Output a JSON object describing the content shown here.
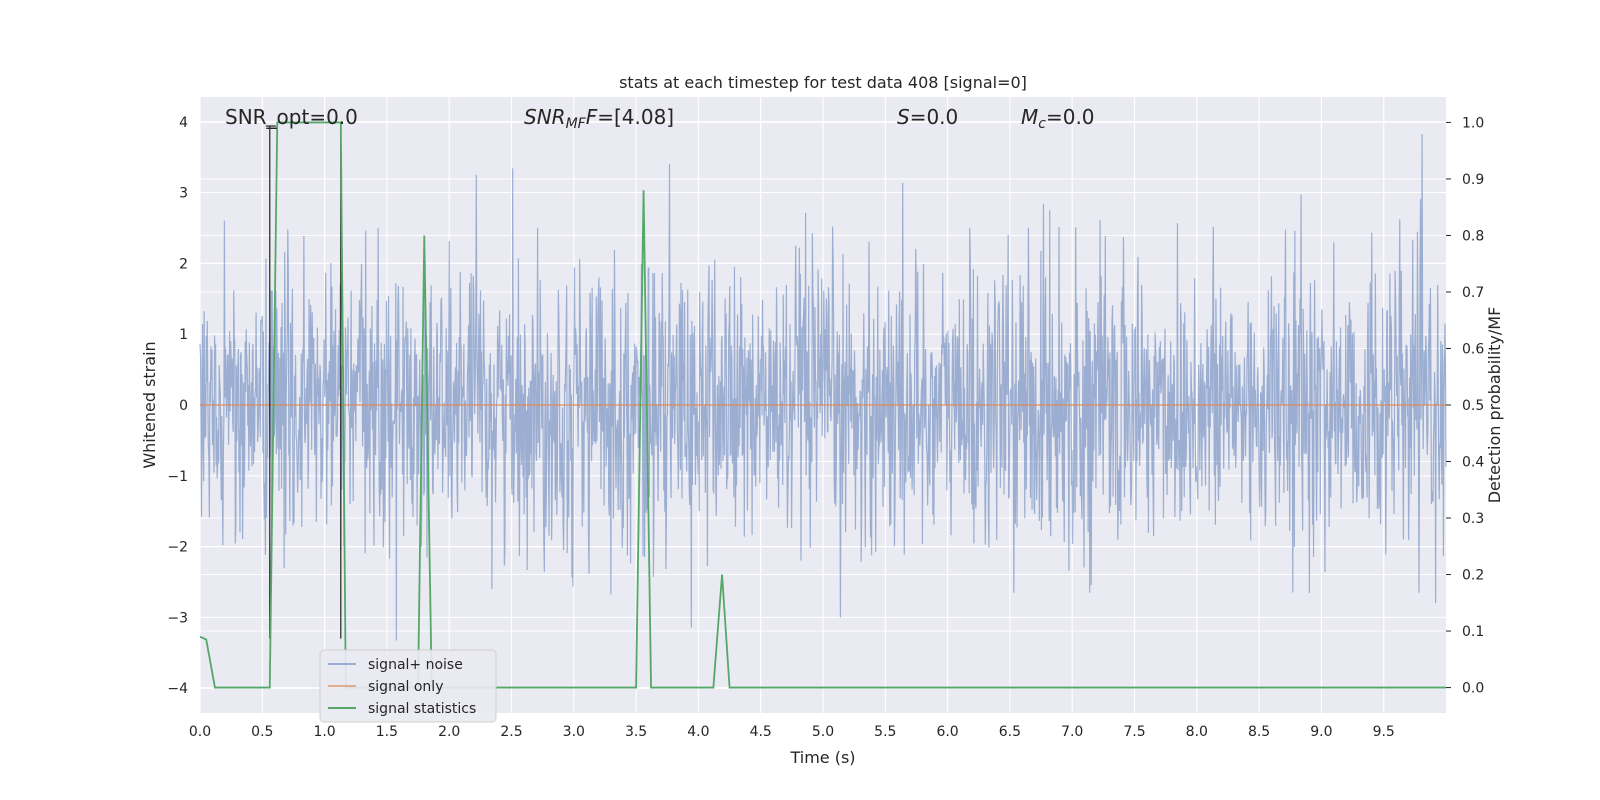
{
  "chart_data": {
    "type": "line",
    "title": "stats at each timestep for test data 408 [signal=0]",
    "xlabel": "Time (s)",
    "ylabel": "Whitened strain",
    "y2label": "Detection probability/MF",
    "xlim": [
      0.0,
      10.0
    ],
    "ylim": [
      -4.35,
      4.35
    ],
    "y2lim": [
      -0.045,
      1.045
    ],
    "xticks": [
      "0.0",
      "0.5",
      "1.0",
      "1.5",
      "2.0",
      "2.5",
      "3.0",
      "3.5",
      "4.0",
      "4.5",
      "5.0",
      "5.5",
      "6.0",
      "6.5",
      "7.0",
      "7.5",
      "8.0",
      "8.5",
      "9.0",
      "9.5"
    ],
    "yticks": [
      "−4",
      "−3",
      "−2",
      "−1",
      "0",
      "1",
      "2",
      "3",
      "4"
    ],
    "y2ticks": [
      "0.0",
      "0.1",
      "0.2",
      "0.3",
      "0.4",
      "0.5",
      "0.6",
      "0.7",
      "0.8",
      "0.9",
      "1.0"
    ],
    "grid": true,
    "legend_position": "lower-left",
    "annotations": {
      "snr_opt": "SNR_opt=0.0",
      "snr_mf_main": "SNR",
      "snr_mf_sub": "MF",
      "snr_mf_val": "=[4.08]",
      "s_main": "S",
      "s_val": "=0.0",
      "mc_main": "M",
      "mc_sub": "c",
      "mc_val": "=0.0"
    },
    "series": [
      {
        "name": "signal+ noise",
        "color": "#4c72b0",
        "axis": "left",
        "description_values": "whitened strain noise approximately within [-4, 4]"
      },
      {
        "name": "signal only",
        "color": "#dd8452",
        "axis": "left",
        "x": [
          0.0,
          10.0
        ],
        "y": [
          0.0,
          0.0
        ]
      },
      {
        "name": "signal statistics",
        "color": "#55a868",
        "axis": "right",
        "x": [
          0.0,
          0.05,
          0.12,
          0.56,
          0.62,
          0.65,
          1.13,
          1.17,
          1.75,
          1.8,
          1.86,
          3.5,
          3.56,
          3.62,
          4.12,
          4.19,
          4.25,
          10.0
        ],
        "y": [
          0.09,
          0.085,
          0.0,
          0.0,
          1.0,
          1.0,
          1.0,
          0.0,
          0.0,
          0.8,
          0.0,
          0.0,
          0.88,
          0.0,
          0.0,
          0.2,
          0.0,
          0.0
        ]
      }
    ],
    "vertical_markers": [
      0.56,
      1.13
    ]
  }
}
